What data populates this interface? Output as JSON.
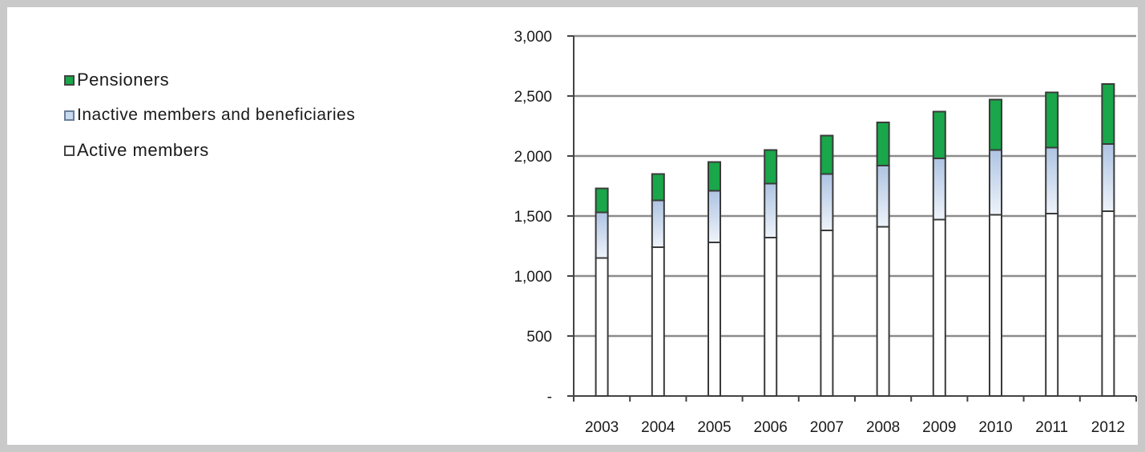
{
  "chart_data": {
    "type": "bar",
    "stacked": true,
    "categories": [
      "2003",
      "2004",
      "2005",
      "2006",
      "2007",
      "2008",
      "2009",
      "2010",
      "2011",
      "2012"
    ],
    "series": [
      {
        "name": "Active members",
        "color": "#ffffff",
        "values": [
          1150,
          1240,
          1280,
          1320,
          1380,
          1410,
          1470,
          1510,
          1520,
          1540
        ]
      },
      {
        "name": "Inactive members and beneficiaries",
        "color": "#c9d9ee",
        "values": [
          380,
          390,
          430,
          450,
          470,
          510,
          510,
          540,
          550,
          560
        ]
      },
      {
        "name": "Pensioners",
        "color": "#1aa64a",
        "values": [
          200,
          220,
          240,
          280,
          320,
          360,
          390,
          420,
          460,
          500
        ]
      }
    ],
    "ylim": [
      0,
      3000
    ],
    "yticks": [
      0,
      500,
      1000,
      1500,
      2000,
      2500,
      3000
    ],
    "ytick_labels": [
      "-",
      "500",
      "1,000",
      "1,500",
      "2,000",
      "2,500",
      "3,000"
    ],
    "grid": true,
    "legend": {
      "placement": "left",
      "items": [
        {
          "label": "Pensioners",
          "color": "#1aa64a"
        },
        {
          "label": "Inactive members and beneficiaries",
          "color": "#c9d9ee"
        },
        {
          "label": "Active members",
          "color": "#ffffff"
        }
      ]
    }
  }
}
